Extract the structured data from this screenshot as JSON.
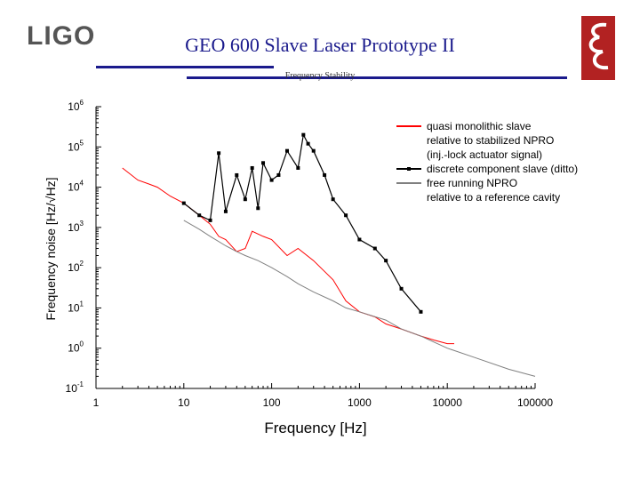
{
  "header": {
    "logo_text": "LIGO",
    "title": "GEO 600 Slave Laser Prototype II",
    "subtitle": "Frequency Stability",
    "logo_icon": "geo-logo-icon",
    "colors": {
      "title": "#1a1a8c",
      "logo_red": "#b22222"
    }
  },
  "chart_data": {
    "type": "line",
    "xlabel": "Frequency [Hz]",
    "ylabel_parts": [
      "F",
      "r",
      "e",
      "q",
      "u",
      "e",
      "n",
      "c",
      "y",
      "n",
      "o",
      "i",
      "s",
      "e",
      "[",
      "H",
      "z",
      "/",
      "√",
      "H",
      "z",
      "]"
    ],
    "ylabel": "Frequency noise [Hz/√Hz]",
    "x_scale": "log",
    "y_scale": "log",
    "xlim": [
      1,
      100000
    ],
    "ylim": [
      0.1,
      1000000
    ],
    "x_ticks": [
      "1",
      "10",
      "100",
      "1000",
      "10000",
      "100000"
    ],
    "y_ticks": [
      {
        "base": "10",
        "exp": "-1"
      },
      {
        "base": "10",
        "exp": "0"
      },
      {
        "base": "10",
        "exp": "1"
      },
      {
        "base": "10",
        "exp": "2"
      },
      {
        "base": "10",
        "exp": "3"
      },
      {
        "base": "10",
        "exp": "4"
      },
      {
        "base": "10",
        "exp": "5"
      },
      {
        "base": "10",
        "exp": "6"
      }
    ],
    "legend_position": "top-right",
    "series": [
      {
        "name": "quasi monolithic slave relative to stabilized NPRO (inj.-lock actuator signal)",
        "legend_lines": [
          "quasi monolithic slave",
          "relative to stabilized NPRO",
          "(inj.-lock actuator signal)"
        ],
        "color": "#ff0000",
        "style": "line",
        "x": [
          2,
          3,
          4,
          5,
          7,
          10,
          15,
          20,
          25,
          30,
          40,
          50,
          60,
          80,
          100,
          150,
          200,
          300,
          500,
          700,
          1000,
          1500,
          2000,
          3000,
          5000,
          7000,
          10000,
          12000
        ],
        "y": [
          30000,
          15000,
          12000,
          10000,
          6000,
          4000,
          2000,
          1200,
          600,
          500,
          250,
          300,
          800,
          600,
          500,
          200,
          300,
          150,
          50,
          15,
          8,
          6,
          4,
          3,
          2,
          1.6,
          1.3,
          1.3
        ]
      },
      {
        "name": "discrete component slave (ditto)",
        "legend_lines": [
          "discrete component slave (ditto)"
        ],
        "color": "#000000",
        "style": "line-square",
        "x": [
          10,
          15,
          20,
          25,
          30,
          40,
          50,
          60,
          70,
          80,
          100,
          120,
          150,
          200,
          230,
          260,
          300,
          400,
          500,
          700,
          1000,
          1500,
          2000,
          3000,
          5000
        ],
        "y": [
          4000,
          2000,
          1500,
          70000,
          2500,
          20000,
          5000,
          30000,
          3000,
          40000,
          15000,
          20000,
          80000,
          30000,
          200000,
          120000,
          80000,
          20000,
          5000,
          2000,
          500,
          300,
          150,
          30,
          8
        ]
      },
      {
        "name": "free running NPRO relative to a reference cavity",
        "legend_lines": [
          "free running NPRO",
          "relative to a reference cavity"
        ],
        "color": "#808080",
        "style": "line",
        "x": [
          10,
          15,
          20,
          30,
          40,
          50,
          70,
          100,
          150,
          200,
          300,
          500,
          700,
          1000,
          2000,
          3000,
          5000,
          10000,
          20000,
          50000,
          100000
        ],
        "y": [
          1500,
          900,
          600,
          350,
          250,
          200,
          150,
          100,
          60,
          40,
          25,
          15,
          10,
          8,
          5,
          3,
          2,
          1,
          0.6,
          0.3,
          0.2
        ]
      }
    ]
  }
}
